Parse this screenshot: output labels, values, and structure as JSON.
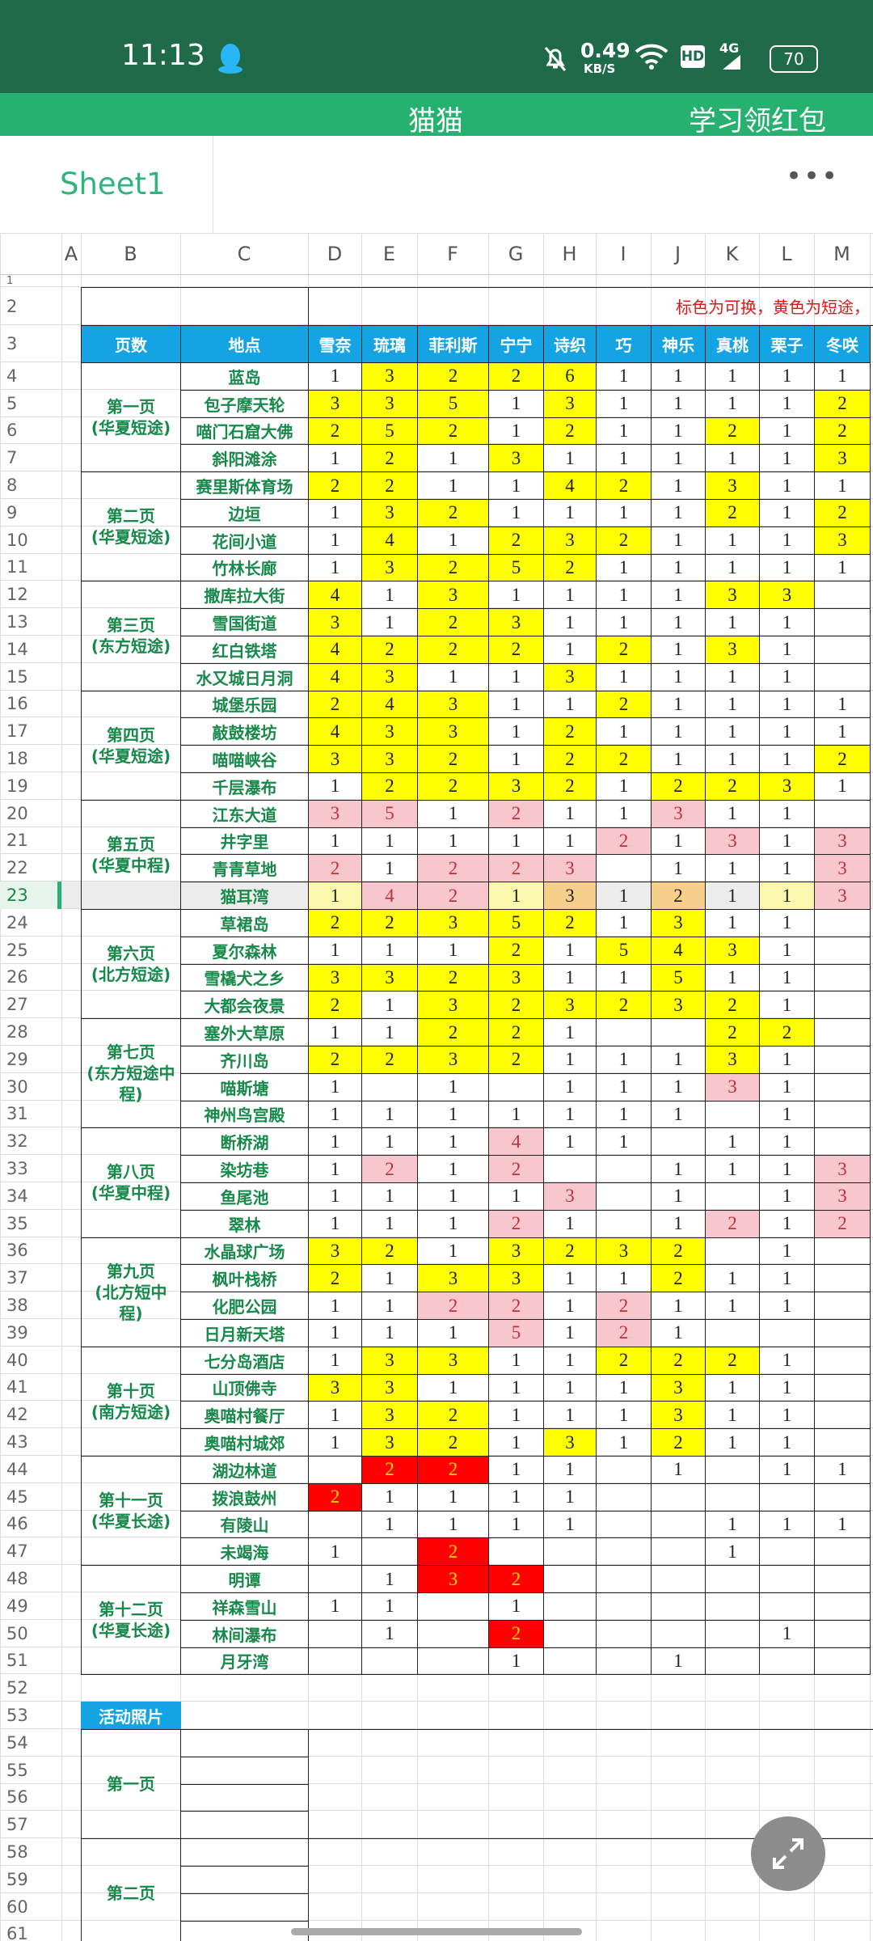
{
  "status": {
    "time": "11:13",
    "speed": "0.49",
    "speed_unit": "KB/S",
    "hd": "HD",
    "network": "4G",
    "battery": "70"
  },
  "header": {
    "title": "猫猫",
    "action": "学习领红包"
  },
  "sheet": {
    "name": "Sheet1",
    "menu": "•••"
  },
  "columns": [
    "A",
    "B",
    "C",
    "D",
    "E",
    "F",
    "G",
    "H",
    "I",
    "J",
    "K",
    "L",
    "M"
  ],
  "row_numbers": [
    1,
    2,
    3,
    4,
    5,
    6,
    7,
    8,
    9,
    10,
    11,
    12,
    13,
    14,
    15,
    16,
    17,
    18,
    19,
    20,
    21,
    22,
    23,
    24,
    25,
    26,
    27,
    28,
    29,
    30,
    31,
    32,
    33,
    34,
    35,
    36,
    37,
    38,
    39,
    40,
    41,
    42,
    43,
    44,
    45,
    46,
    47,
    48,
    49,
    50,
    51,
    52,
    53,
    54,
    55,
    56,
    57,
    58,
    59,
    60,
    61
  ],
  "table": {
    "note": "标色为可换，黄色为短途，",
    "headers": [
      "页数",
      "地点",
      "雪奈",
      "琉璃",
      "菲利斯",
      "宁宁",
      "诗织",
      "巧",
      "神乐",
      "真桃",
      "栗子",
      "冬咲"
    ],
    "groups": [
      {
        "page": "第一页",
        "route": "(华夏短途)",
        "rows": [
          {
            "place": "蓝岛",
            "values": [
              1,
              3,
              2,
              2,
              6,
              1,
              1,
              1,
              1,
              1
            ],
            "fills": "-yyyy-----"
          },
          {
            "place": "包子摩天轮",
            "values": [
              3,
              3,
              5,
              1,
              3,
              1,
              1,
              1,
              1,
              2
            ],
            "fills": "yyy-y----y"
          },
          {
            "place": "喵门石窟大佛",
            "values": [
              2,
              5,
              2,
              1,
              2,
              1,
              1,
              2,
              1,
              2
            ],
            "fills": "yyy-y--y-y"
          },
          {
            "place": "斜阳滩涂",
            "values": [
              1,
              2,
              1,
              3,
              1,
              1,
              1,
              1,
              1,
              3
            ],
            "fills": "-y-y-----y"
          }
        ]
      },
      {
        "page": "第二页",
        "route": "(华夏短途)",
        "rows": [
          {
            "place": "赛里斯体育场",
            "values": [
              2,
              2,
              1,
              1,
              4,
              2,
              1,
              3,
              1,
              1
            ],
            "fills": "yy--yy-y--"
          },
          {
            "place": "边垣",
            "values": [
              1,
              3,
              2,
              1,
              1,
              1,
              1,
              2,
              1,
              2
            ],
            "fills": "-yy----y-y"
          },
          {
            "place": "花间小道",
            "values": [
              1,
              4,
              1,
              2,
              3,
              2,
              1,
              1,
              1,
              3
            ],
            "fills": "-y-yyy---y"
          },
          {
            "place": "竹林长廊",
            "values": [
              1,
              3,
              2,
              5,
              2,
              1,
              1,
              1,
              1,
              1
            ],
            "fills": "-yyyy-----"
          }
        ]
      },
      {
        "page": "第三页",
        "route": "(东方短途)",
        "rows": [
          {
            "place": "撒库拉大街",
            "values": [
              4,
              1,
              3,
              1,
              1,
              1,
              1,
              3,
              3,
              null
            ],
            "fills": "y-y----yy-"
          },
          {
            "place": "雪国街道",
            "values": [
              3,
              1,
              2,
              3,
              1,
              1,
              1,
              1,
              1,
              null
            ],
            "fills": "y-yy------"
          },
          {
            "place": "红白铁塔",
            "values": [
              4,
              2,
              2,
              2,
              1,
              2,
              1,
              3,
              1,
              null
            ],
            "fills": "yyyy-y-y--"
          },
          {
            "place": "水又城日月洞",
            "values": [
              4,
              3,
              1,
              1,
              3,
              1,
              1,
              1,
              1,
              null
            ],
            "fills": "yy--y-----"
          }
        ]
      },
      {
        "page": "第四页",
        "route": "(华夏短途)",
        "rows": [
          {
            "place": "城堡乐园",
            "values": [
              2,
              4,
              3,
              1,
              1,
              2,
              1,
              1,
              1,
              1
            ],
            "fills": "yyy--y----"
          },
          {
            "place": "敲鼓楼坊",
            "values": [
              4,
              3,
              3,
              1,
              2,
              1,
              1,
              1,
              1,
              1
            ],
            "fills": "yyy-y-----"
          },
          {
            "place": "喵喵峡谷",
            "values": [
              3,
              3,
              2,
              1,
              2,
              2,
              1,
              1,
              1,
              2
            ],
            "fills": "yyy-yy---y"
          },
          {
            "place": "千层瀑布",
            "values": [
              1,
              2,
              2,
              3,
              2,
              1,
              2,
              2,
              3,
              1
            ],
            "fills": "-yyyy-yyy-"
          }
        ]
      },
      {
        "page": "第五页",
        "route": "(华夏中程)",
        "rows": [
          {
            "place": "江东大道",
            "values": [
              3,
              5,
              1,
              2,
              1,
              1,
              3,
              1,
              1,
              null
            ],
            "fills": "pp-p--p---"
          },
          {
            "place": "井字里",
            "values": [
              1,
              1,
              1,
              1,
              1,
              2,
              1,
              3,
              1,
              3
            ],
            "fills": "-----p-p-p"
          },
          {
            "place": "青青草地",
            "values": [
              2,
              1,
              2,
              2,
              3,
              null,
              1,
              1,
              1,
              3
            ],
            "fills": "p-ppp----p"
          },
          {
            "place": "猫耳湾",
            "values": [
              1,
              4,
              2,
              1,
              3,
              1,
              2,
              1,
              1,
              3
            ],
            "fills": "lpplo-o-lp",
            "selected": true
          }
        ]
      },
      {
        "page": "第六页",
        "route": "(北方短途)",
        "rows": [
          {
            "place": "草裙岛",
            "values": [
              2,
              2,
              3,
              5,
              2,
              1,
              3,
              1,
              1,
              null
            ],
            "fills": "yyyyy-y---"
          },
          {
            "place": "夏尔森林",
            "values": [
              1,
              1,
              1,
              2,
              1,
              5,
              4,
              3,
              1,
              null
            ],
            "fills": "---y-yyy--"
          },
          {
            "place": "雪橇犬之乡",
            "values": [
              3,
              3,
              2,
              3,
              1,
              1,
              5,
              1,
              1,
              null
            ],
            "fills": "yyyy--y---"
          },
          {
            "place": "大都会夜景",
            "values": [
              2,
              1,
              3,
              2,
              3,
              2,
              3,
              2,
              1,
              null
            ],
            "fills": "y-yyyyyy--"
          }
        ]
      },
      {
        "page": "第七页",
        "route": "(东方短途中程)",
        "rows": [
          {
            "place": "塞外大草原",
            "values": [
              1,
              1,
              2,
              2,
              1,
              null,
              null,
              2,
              2,
              null
            ],
            "fills": "--yy---yy-"
          },
          {
            "place": "齐川岛",
            "values": [
              2,
              2,
              3,
              2,
              1,
              1,
              1,
              3,
              1,
              null
            ],
            "fills": "yyyy---y--"
          },
          {
            "place": "喵斯塘",
            "values": [
              1,
              null,
              1,
              null,
              1,
              1,
              1,
              3,
              1,
              null
            ],
            "fills": "-------p--"
          },
          {
            "place": "神州鸟宫殿",
            "values": [
              1,
              1,
              1,
              1,
              1,
              1,
              1,
              null,
              1,
              null
            ],
            "fills": "----------"
          }
        ]
      },
      {
        "page": "第八页",
        "route": "(华夏中程)",
        "rows": [
          {
            "place": "断桥湖",
            "values": [
              1,
              1,
              1,
              4,
              1,
              1,
              null,
              1,
              1,
              null
            ],
            "fills": "---p------"
          },
          {
            "place": "染坊巷",
            "values": [
              1,
              2,
              1,
              2,
              null,
              null,
              1,
              1,
              1,
              3
            ],
            "fills": "-p-p-----p"
          },
          {
            "place": "鱼尾池",
            "values": [
              1,
              1,
              1,
              1,
              3,
              null,
              1,
              null,
              1,
              3
            ],
            "fills": "----p----p"
          },
          {
            "place": "翠林",
            "values": [
              1,
              1,
              1,
              2,
              1,
              null,
              1,
              2,
              1,
              2
            ],
            "fills": "---p---p-p"
          }
        ]
      },
      {
        "page": "第九页",
        "route": "(北方短中程)",
        "rows": [
          {
            "place": "水晶球广场",
            "values": [
              3,
              2,
              1,
              3,
              2,
              3,
              2,
              null,
              1,
              null
            ],
            "fills": "yy-yyyy---"
          },
          {
            "place": "枫叶栈桥",
            "values": [
              2,
              1,
              3,
              3,
              1,
              1,
              2,
              1,
              1,
              null
            ],
            "fills": "y-yy--y---"
          },
          {
            "place": "化肥公园",
            "values": [
              1,
              1,
              2,
              2,
              1,
              2,
              1,
              1,
              1,
              null
            ],
            "fills": "--pp-p----"
          },
          {
            "place": "日月新天塔",
            "values": [
              1,
              1,
              1,
              5,
              1,
              2,
              1,
              null,
              null,
              null
            ],
            "fills": "---p-p----"
          }
        ]
      },
      {
        "page": "第十页",
        "route": "(南方短途)",
        "rows": [
          {
            "place": "七分岛酒店",
            "values": [
              1,
              3,
              3,
              1,
              1,
              2,
              2,
              2,
              1,
              null
            ],
            "fills": "-yy--yyy--"
          },
          {
            "place": "山顶佛寺",
            "values": [
              3,
              3,
              1,
              1,
              1,
              1,
              3,
              1,
              1,
              null
            ],
            "fills": "yy----y---"
          },
          {
            "place": "奥喵村餐厅",
            "values": [
              1,
              3,
              2,
              1,
              1,
              1,
              3,
              1,
              1,
              null
            ],
            "fills": "-yy---y---"
          },
          {
            "place": "奥喵村城郊",
            "values": [
              1,
              3,
              2,
              1,
              3,
              1,
              2,
              1,
              1,
              null
            ],
            "fills": "-yy-y-y---"
          }
        ]
      },
      {
        "page": "第十一页",
        "route": "(华夏长途)",
        "rows": [
          {
            "place": "湖边林道",
            "values": [
              null,
              2,
              2,
              1,
              1,
              null,
              1,
              null,
              1,
              1
            ],
            "fills": "-rr-------"
          },
          {
            "place": "拨浪鼓州",
            "values": [
              2,
              1,
              1,
              1,
              1,
              null,
              null,
              null,
              null,
              null
            ],
            "fills": "r---------"
          },
          {
            "place": "有陵山",
            "values": [
              null,
              1,
              1,
              1,
              1,
              null,
              null,
              1,
              1,
              1
            ],
            "fills": "----------"
          },
          {
            "place": "未竭海",
            "values": [
              1,
              null,
              2,
              null,
              null,
              null,
              null,
              1,
              null,
              null
            ],
            "fills": "--r-------"
          }
        ]
      },
      {
        "page": "第十二页",
        "route": "(华夏长途)",
        "rows": [
          {
            "place": "明谭",
            "values": [
              null,
              1,
              3,
              2,
              null,
              null,
              null,
              null,
              null,
              null
            ],
            "fills": "--rr------"
          },
          {
            "place": "祥森雪山",
            "values": [
              1,
              1,
              null,
              1,
              null,
              null,
              null,
              null,
              null,
              null
            ],
            "fills": "----------"
          },
          {
            "place": "林间瀑布",
            "values": [
              null,
              1,
              null,
              2,
              null,
              null,
              null,
              null,
              1,
              null
            ],
            "fills": "---r------"
          },
          {
            "place": "月牙湾",
            "values": [
              null,
              null,
              null,
              1,
              null,
              null,
              1,
              null,
              null,
              null
            ],
            "fills": "----------"
          }
        ]
      }
    ]
  },
  "photos": {
    "title": "活动照片",
    "pages": [
      "第一页",
      "第二页"
    ]
  }
}
